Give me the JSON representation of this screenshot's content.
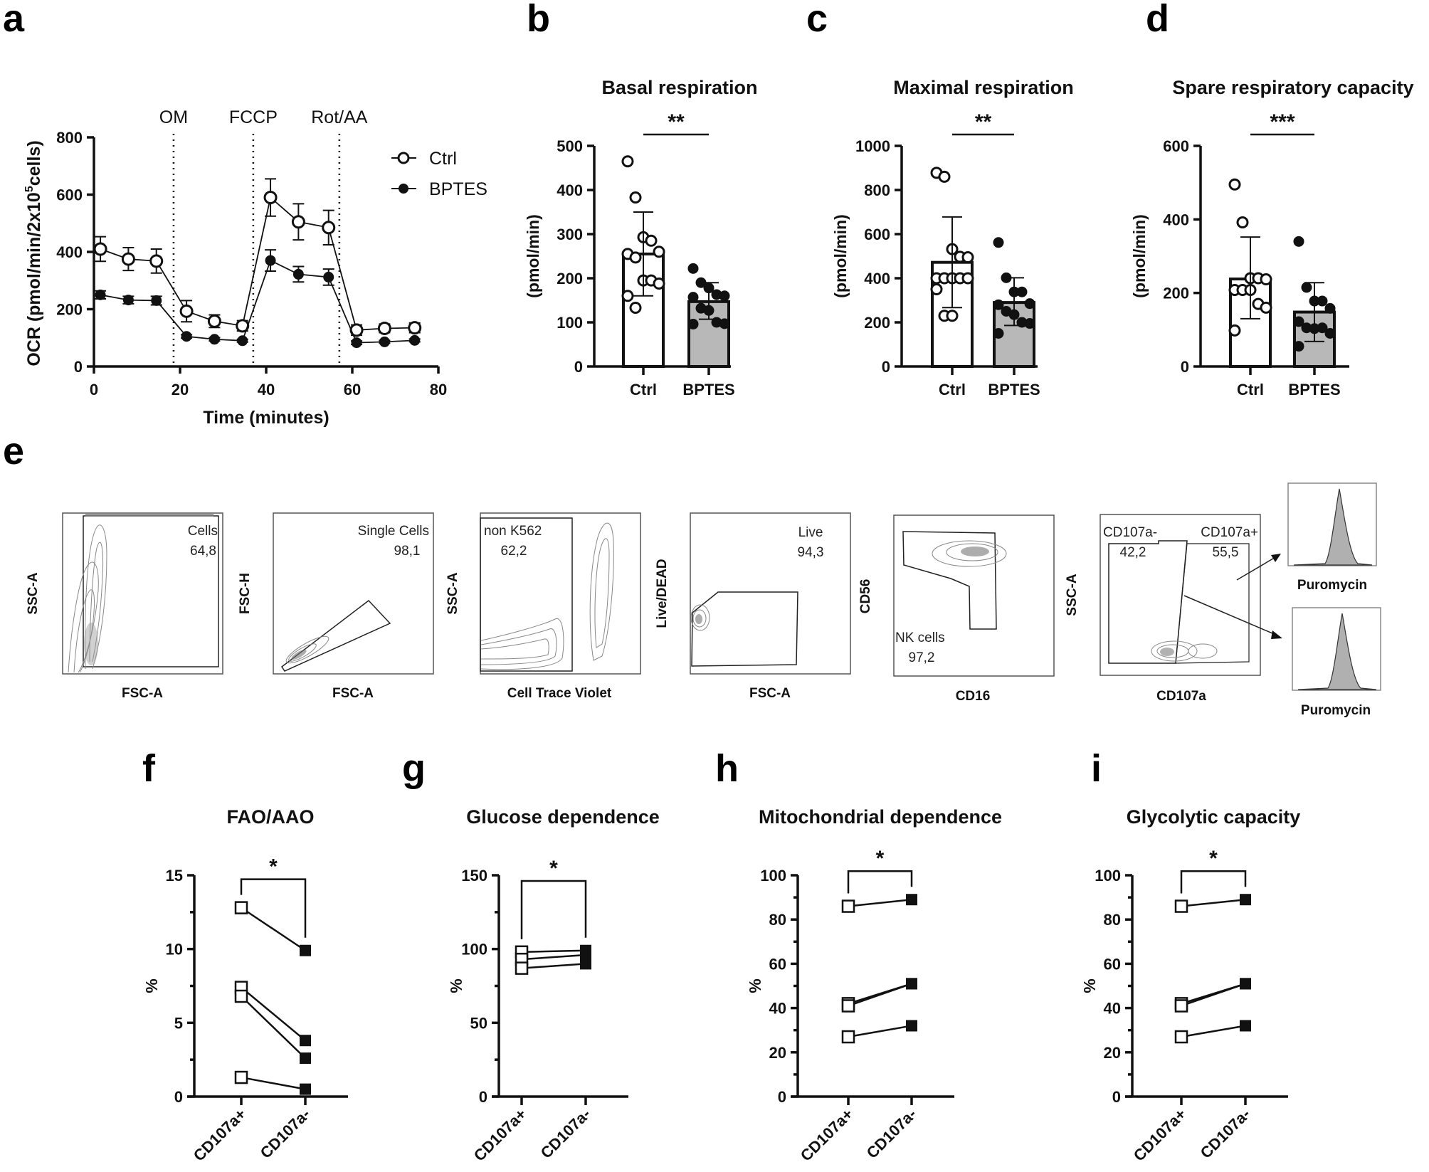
{
  "figure": {
    "panel_labels": [
      "a",
      "b",
      "c",
      "d",
      "e",
      "f",
      "g",
      "h",
      "i"
    ]
  },
  "chart_data": [
    {
      "id": "a",
      "type": "line",
      "title": "",
      "xlabel": "Time (minutes)",
      "ylabel": "OCR (pmol/min/2x10^5cells)",
      "ylabel_parts": {
        "pre": "OCR (pmol/min/2x10",
        "sup": "5",
        "post": "cells)"
      },
      "xlim": [
        0,
        80
      ],
      "ylim": [
        0,
        800
      ],
      "xticks": [
        0,
        20,
        40,
        60,
        80
      ],
      "yticks": [
        0,
        200,
        400,
        600,
        800
      ],
      "injections": [
        {
          "label": "OM",
          "x": 18.5
        },
        {
          "label": "FCCP",
          "x": 37
        },
        {
          "label": "Rot/AA",
          "x": 57
        }
      ],
      "legend": {
        "position": "top-right",
        "entries": [
          "Ctrl",
          "BPTES"
        ]
      },
      "x": [
        1.5,
        8,
        14.5,
        21.5,
        28,
        34.5,
        41,
        47.5,
        54.5,
        61,
        67.5,
        74.5
      ],
      "series": [
        {
          "name": "Ctrl",
          "marker": "open-circle",
          "values": [
            410,
            375,
            368,
            193,
            158,
            142,
            590,
            505,
            485,
            127,
            133,
            135
          ],
          "errors": [
            43,
            40,
            42,
            37,
            22,
            18,
            65,
            63,
            60,
            18,
            15,
            17
          ]
        },
        {
          "name": "BPTES",
          "marker": "filled-circle",
          "values": [
            250,
            232,
            230,
            105,
            95,
            90,
            370,
            322,
            312,
            83,
            86,
            91
          ],
          "errors": [
            14,
            13,
            15,
            6,
            6,
            5,
            37,
            27,
            28,
            6,
            5,
            5
          ]
        }
      ]
    },
    {
      "id": "b",
      "type": "bar",
      "title": "Basal respiration",
      "ylabel": "(pmol/min)",
      "categories": [
        "Ctrl",
        "BPTES"
      ],
      "ylim": [
        0,
        500
      ],
      "yticks": [
        0,
        100,
        200,
        300,
        400,
        500
      ],
      "significance": "**",
      "bars": [
        {
          "name": "Ctrl",
          "mean": 255,
          "sd_low": 160,
          "sd_high": 350,
          "fill": "#ffffff",
          "points": [
            465,
            383,
            293,
            285,
            260,
            255,
            247,
            195,
            195,
            188,
            160,
            133
          ]
        },
        {
          "name": "BPTES",
          "mean": 147,
          "sd_low": 107,
          "sd_high": 190,
          "fill": "#b8b8b8",
          "points": [
            222,
            190,
            178,
            163,
            160,
            157,
            132,
            127,
            100,
            97,
            96
          ]
        }
      ]
    },
    {
      "id": "c",
      "type": "bar",
      "title": "Maximal respiration",
      "ylabel": "(pmol/min)",
      "categories": [
        "Ctrl",
        "BPTES"
      ],
      "ylim": [
        0,
        1000
      ],
      "yticks": [
        0,
        200,
        400,
        600,
        800,
        1000
      ],
      "significance": "**",
      "bars": [
        {
          "name": "Ctrl",
          "mean": 472,
          "sd_low": 267,
          "sd_high": 678,
          "fill": "#ffffff",
          "points": [
            878,
            860,
            532,
            497,
            495,
            400,
            400,
            400,
            400,
            400,
            350,
            230,
            230
          ]
        },
        {
          "name": "BPTES",
          "mean": 290,
          "sd_low": 186,
          "sd_high": 402,
          "fill": "#b8b8b8",
          "points": [
            562,
            402,
            338,
            338,
            285,
            280,
            250,
            235,
            200,
            195,
            150
          ]
        }
      ]
    },
    {
      "id": "d",
      "type": "bar",
      "title": "Spare respiratory capacity",
      "ylabel": "(pmol/min)",
      "categories": [
        "Ctrl",
        "BPTES"
      ],
      "ylim": [
        0,
        600
      ],
      "yticks": [
        0,
        200,
        400,
        600
      ],
      "significance": "***",
      "bars": [
        {
          "name": "Ctrl",
          "mean": 238,
          "sd_low": 130,
          "sd_high": 352,
          "fill": "#ffffff",
          "points": [
            495,
            392,
            240,
            240,
            237,
            208,
            208,
            208,
            170,
            160,
            98
          ]
        },
        {
          "name": "BPTES",
          "mean": 148,
          "sd_low": 68,
          "sd_high": 228,
          "fill": "#b8b8b8",
          "points": [
            340,
            215,
            178,
            178,
            158,
            122,
            105,
            103,
            105,
            90,
            55
          ]
        }
      ]
    },
    {
      "id": "f",
      "type": "line",
      "title": "FAO/AAO",
      "ylabel": "%",
      "categories": [
        "CD107a+",
        "CD107a-"
      ],
      "ylim": [
        0,
        15
      ],
      "yticks": [
        0,
        5,
        10,
        15
      ],
      "significance": "*",
      "pairs": [
        [
          12.8,
          9.9
        ],
        [
          7.4,
          3.8
        ],
        [
          6.8,
          2.6
        ],
        [
          1.3,
          0.5
        ]
      ]
    },
    {
      "id": "g",
      "type": "line",
      "title": "Glucose dependence",
      "ylabel": "%",
      "categories": [
        "CD107a+",
        "CD107a-"
      ],
      "ylim": [
        0,
        150
      ],
      "yticks": [
        0,
        50,
        100,
        150
      ],
      "significance": "*",
      "pairs": [
        [
          98,
          99
        ],
        [
          93,
          96
        ],
        [
          87,
          90
        ]
      ]
    },
    {
      "id": "h",
      "type": "line",
      "title": "Mitochondrial dependence",
      "ylabel": "%",
      "categories": [
        "CD107a+",
        "CD107a-"
      ],
      "ylim": [
        0,
        100
      ],
      "yticks": [
        0,
        20,
        40,
        60,
        80,
        100
      ],
      "significance": "*",
      "pairs": [
        [
          86,
          89
        ],
        [
          42,
          51
        ],
        [
          41,
          51
        ],
        [
          27,
          32
        ]
      ]
    },
    {
      "id": "i",
      "type": "line",
      "title": "Glycolytic capacity",
      "ylabel": "%",
      "categories": [
        "CD107a+",
        "CD107a-"
      ],
      "ylim": [
        0,
        100
      ],
      "yticks": [
        0,
        20,
        40,
        60,
        80,
        100
      ],
      "significance": "*",
      "pairs": [
        [
          86,
          89
        ],
        [
          42,
          51
        ],
        [
          41,
          51
        ],
        [
          27,
          32
        ]
      ]
    }
  ],
  "flow_gating": {
    "plots": [
      {
        "xlabel": "FSC-A",
        "ylabel": "SSC-A",
        "gate_name": "Cells",
        "gate_value": "64,8"
      },
      {
        "xlabel": "FSC-A",
        "ylabel": "FSC-H",
        "gate_name": "Single Cells",
        "gate_value": "98,1"
      },
      {
        "xlabel": "Cell Trace Violet",
        "ylabel": "SSC-A",
        "gate_name": "non K562",
        "gate_value": "62,2"
      },
      {
        "xlabel": "FSC-A",
        "ylabel": "Live/DEAD",
        "gate_name": "Live",
        "gate_value": "94,3"
      },
      {
        "xlabel": "CD16",
        "ylabel": "CD56",
        "gate_name": "NK cells",
        "gate_value": "97,2"
      },
      {
        "xlabel": "CD107a",
        "ylabel": "SSC-A",
        "gate_name": "CD107a-",
        "gate_value": "42,2",
        "gate2_name": "CD107a+",
        "gate2_value": "55,5"
      }
    ],
    "histograms": [
      {
        "xlabel": "Puromycin"
      },
      {
        "xlabel": "Puromycin"
      }
    ]
  }
}
